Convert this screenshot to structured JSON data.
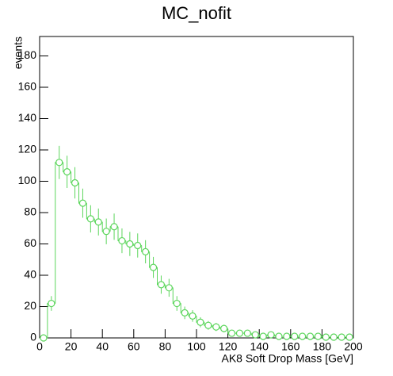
{
  "chart_data": {
    "type": "histogram",
    "title": "MC_nofit",
    "xlabel": "AK8 Soft Drop Mass [GeV]",
    "ylabel": "events",
    "bins": [
      0,
      5,
      10,
      15,
      20,
      25,
      30,
      35,
      40,
      45,
      50,
      55,
      60,
      65,
      70,
      75,
      80,
      85,
      90,
      95,
      100,
      105,
      110,
      115,
      120,
      125,
      130,
      135,
      140,
      145,
      150,
      155,
      160,
      165,
      170,
      175,
      180,
      185,
      190,
      195,
      200
    ],
    "values": [
      0,
      22,
      112,
      106,
      99,
      86,
      76,
      74,
      68,
      71,
      62,
      60,
      59,
      55,
      45,
      34,
      32,
      22,
      16,
      14,
      10,
      8,
      7,
      6,
      3,
      3,
      3,
      2,
      1,
      2,
      1,
      1,
      1,
      1,
      1,
      1,
      0.5,
      0.5,
      0.5,
      0.5
    ],
    "errors": [
      0,
      4.7,
      10.6,
      10.3,
      10,
      9.3,
      8.7,
      8.6,
      8.2,
      8.4,
      7.9,
      7.7,
      7.7,
      7.4,
      6.7,
      5.8,
      5.7,
      4.7,
      4,
      3.7,
      3.2,
      2.8,
      2.6,
      2.4,
      1.7,
      1.7,
      1.7,
      1.4,
      1,
      1.4,
      1,
      1,
      1,
      1,
      1,
      1,
      0.7,
      0.7,
      0.7,
      0.7
    ],
    "color": "#5cd65c",
    "xlim": [
      0,
      200
    ],
    "xticks": [
      0,
      20,
      40,
      60,
      80,
      100,
      120,
      140,
      160,
      180,
      200
    ],
    "ylim": [
      0,
      192.4
    ],
    "yticks": [
      0,
      20,
      40,
      60,
      80,
      100,
      120,
      140,
      160,
      180
    ]
  }
}
